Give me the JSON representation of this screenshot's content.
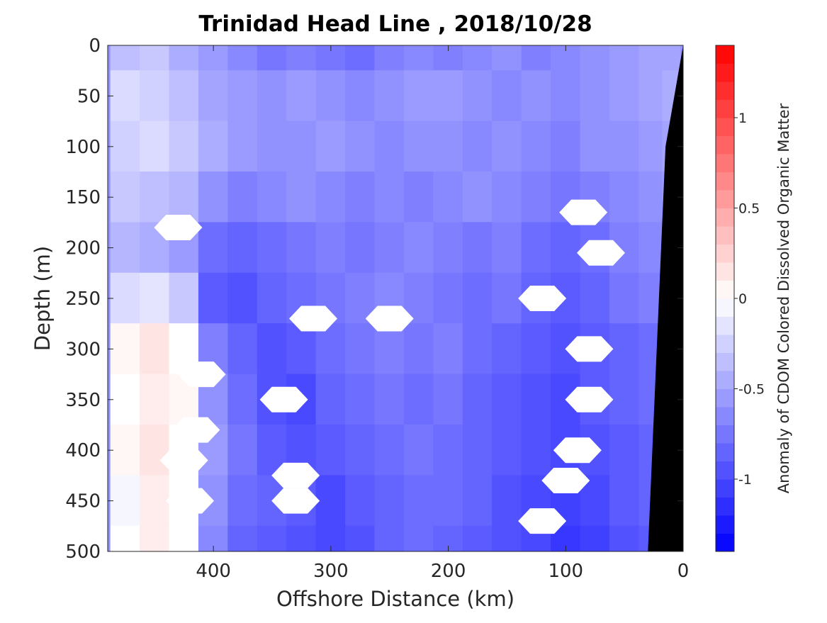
{
  "chart_data": {
    "type": "heatmap",
    "title": "Trinidad Head Line , 2018/10/28",
    "xlabel": "Offshore Distance (km)",
    "ylabel": "Depth (m)",
    "colorbar_label": "Anomaly of CDOM Colored Dissolved Organic Matter",
    "xlim": [
      490,
      0
    ],
    "ylim": [
      500,
      0
    ],
    "x_ticks": [
      400,
      300,
      200,
      100,
      0
    ],
    "x_tick_labels": [
      "400",
      "300",
      "200",
      "100",
      "0"
    ],
    "y_ticks": [
      0,
      50,
      100,
      150,
      200,
      250,
      300,
      350,
      400,
      450,
      500
    ],
    "y_tick_labels": [
      "0",
      "50",
      "100",
      "150",
      "200",
      "250",
      "300",
      "350",
      "400",
      "450",
      "500"
    ],
    "clim": [
      -1.4,
      1.4
    ],
    "colorbar_ticks": [
      1,
      0.5,
      0,
      -0.5,
      -1
    ],
    "colorbar_tick_labels": [
      "1",
      "0.5",
      "0",
      "-0.5",
      "-1"
    ],
    "colormap": {
      "low": "#0000ff",
      "mid": "#ffffff",
      "high": "#ff0000"
    },
    "x_grid": [
      475,
      450,
      425,
      400,
      375,
      350,
      325,
      300,
      275,
      250,
      225,
      200,
      175,
      150,
      125,
      100,
      75,
      50,
      25,
      10
    ],
    "y_grid": [
      0,
      50,
      100,
      150,
      200,
      250,
      300,
      350,
      400,
      450,
      500
    ],
    "values": [
      [
        -0.35,
        -0.3,
        -0.45,
        -0.55,
        -0.65,
        -0.75,
        -0.7,
        -0.75,
        -0.8,
        -0.7,
        -0.65,
        -0.7,
        -0.65,
        -0.6,
        -0.7,
        -0.65,
        -0.6,
        -0.55,
        -0.5,
        -0.5
      ],
      [
        -0.2,
        -0.25,
        -0.35,
        -0.5,
        -0.55,
        -0.6,
        -0.55,
        -0.6,
        -0.65,
        -0.6,
        -0.55,
        -0.55,
        -0.6,
        -0.65,
        -0.6,
        -0.65,
        -0.6,
        -0.55,
        -0.5,
        -0.45
      ],
      [
        -0.25,
        -0.2,
        -0.3,
        -0.45,
        -0.55,
        -0.6,
        -0.6,
        -0.55,
        -0.6,
        -0.65,
        -0.6,
        -0.6,
        -0.65,
        -0.6,
        -0.65,
        -0.7,
        -0.6,
        -0.6,
        -0.55,
        -0.5
      ],
      [
        -0.3,
        -0.35,
        -0.4,
        -0.6,
        -0.7,
        -0.65,
        -0.6,
        -0.65,
        -0.7,
        -0.65,
        -0.7,
        -0.65,
        -0.6,
        -0.65,
        -0.7,
        -0.75,
        -0.7,
        -0.65,
        -0.6,
        -0.55
      ],
      [
        -0.4,
        -0.45,
        -0.55,
        -0.8,
        -0.85,
        -0.8,
        -0.75,
        -0.7,
        -0.75,
        -0.7,
        -0.65,
        -0.7,
        -0.75,
        -0.7,
        -0.8,
        -0.85,
        -0.8,
        -0.7,
        -0.65,
        -0.6
      ],
      [
        -0.2,
        -0.15,
        -0.3,
        -0.9,
        -0.95,
        -0.85,
        -0.8,
        -0.75,
        -0.7,
        -0.65,
        -0.7,
        -0.75,
        -0.8,
        -0.75,
        -0.85,
        -0.9,
        -0.85,
        -0.75,
        -0.7,
        -0.65
      ],
      [
        0.05,
        0.15,
        0.0,
        -0.7,
        -0.85,
        -0.95,
        -0.9,
        -0.8,
        -0.75,
        -0.7,
        -0.75,
        -0.7,
        -0.8,
        -0.85,
        -0.9,
        -0.95,
        -0.9,
        -0.85,
        -0.8,
        -0.75
      ],
      [
        0.0,
        0.1,
        0.05,
        -0.6,
        -0.8,
        -0.95,
        -1.0,
        -0.85,
        -0.8,
        -0.75,
        -0.8,
        -0.75,
        -0.85,
        -0.9,
        -0.95,
        -1.0,
        -0.9,
        -0.85,
        -0.8,
        -0.75
      ],
      [
        0.05,
        0.15,
        0.0,
        -0.55,
        -0.75,
        -0.9,
        -0.95,
        -0.9,
        -0.85,
        -0.8,
        -0.75,
        -0.8,
        -0.85,
        -0.9,
        -0.95,
        -1.0,
        -0.95,
        -0.9,
        -0.85,
        -0.8
      ],
      [
        -0.05,
        0.1,
        0.0,
        -0.6,
        -0.8,
        -0.85,
        -0.9,
        -1.0,
        -0.9,
        -0.85,
        -0.8,
        -0.8,
        -0.85,
        -0.95,
        -1.0,
        -1.05,
        -1.0,
        -0.9,
        -0.85,
        -0.8
      ],
      [
        0.0,
        0.1,
        0.0,
        -0.65,
        -0.85,
        -0.9,
        -0.95,
        -1.0,
        -0.95,
        -0.85,
        -0.8,
        -0.85,
        -0.9,
        -0.95,
        -1.0,
        -1.1,
        -1.05,
        -0.95,
        -0.9,
        -0.85
      ]
    ],
    "masked_regions": [
      {
        "x": 430,
        "y": 180
      },
      {
        "x": 315,
        "y": 270
      },
      {
        "x": 250,
        "y": 270
      },
      {
        "x": 120,
        "y": 250
      },
      {
        "x": 85,
        "y": 165
      },
      {
        "x": 70,
        "y": 205
      },
      {
        "x": 410,
        "y": 325
      },
      {
        "x": 415,
        "y": 380
      },
      {
        "x": 425,
        "y": 410
      },
      {
        "x": 420,
        "y": 450
      },
      {
        "x": 340,
        "y": 350
      },
      {
        "x": 330,
        "y": 425
      },
      {
        "x": 330,
        "y": 450
      },
      {
        "x": 80,
        "y": 300
      },
      {
        "x": 80,
        "y": 350
      },
      {
        "x": 90,
        "y": 400
      },
      {
        "x": 100,
        "y": 430
      },
      {
        "x": 120,
        "y": 470
      }
    ],
    "topography": "black seafloor wedge near 0 km offshore"
  }
}
